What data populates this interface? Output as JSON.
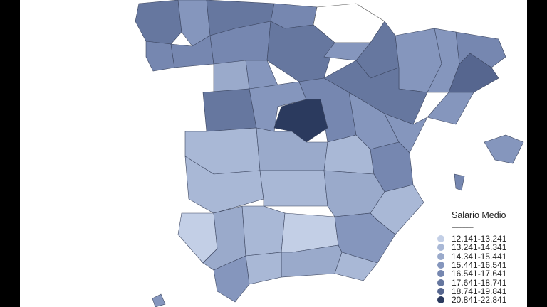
{
  "legend": {
    "title": "Salario Medio",
    "separator": "---------------",
    "classes": [
      {
        "label": "12.141-13.241",
        "color": "#c3cfe6"
      },
      {
        "label": "13.241-14.341",
        "color": "#a9b8d6"
      },
      {
        "label": "14.341-15.441",
        "color": "#9aaacb"
      },
      {
        "label": "15.441-16.541",
        "color": "#8596bd"
      },
      {
        "label": "16.541-17.641",
        "color": "#7687b0"
      },
      {
        "label": "17.641-18.741",
        "color": "#66779f"
      },
      {
        "label": "18.741-19.841",
        "color": "#56668f"
      },
      {
        "label": "20.841-22.841",
        "color": "#2b3a5e"
      }
    ]
  },
  "no_data_color": "#ffffff"
}
